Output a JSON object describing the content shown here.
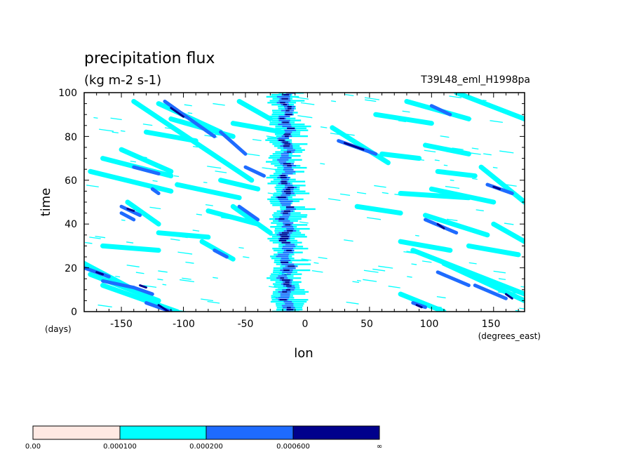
{
  "chart_data": {
    "type": "heatmap",
    "title": "precipitation flux",
    "subtitle": "(kg m-2 s-1)",
    "run_label": "T39L48_eml_H1998pa",
    "xlabel": "lon",
    "x_units": "(degrees_east)",
    "ylabel": "time",
    "y_units": "(days)",
    "xlim": [
      -180,
      175
    ],
    "ylim": [
      0,
      100
    ],
    "x_ticks": [
      -150,
      -100,
      -50,
      0,
      50,
      100,
      150
    ],
    "y_ticks": [
      0,
      20,
      40,
      60,
      80,
      100
    ],
    "x_tick_labels": [
      "-150",
      "-100",
      "-50",
      "0",
      "50",
      "100",
      "150"
    ],
    "y_tick_labels": [
      "0",
      "20",
      "40",
      "60",
      "80",
      "100"
    ],
    "grid": false,
    "legend_position": "bottom",
    "colorbar": {
      "levels": [
        "0.00",
        "0.000100",
        "0.000200",
        "0.000600",
        "∞"
      ],
      "colors": [
        "#ffe9e3",
        "#00ffff",
        "#1e6bff",
        "#00008c"
      ]
    },
    "series": [
      {
        "level": 1,
        "segments": [
          [
            -180,
            22,
            -140,
            10
          ],
          [
            -175,
            17,
            -120,
            5
          ],
          [
            -165,
            12,
            -105,
            0
          ],
          [
            -145,
            50,
            -120,
            40
          ],
          [
            -175,
            64,
            -110,
            55
          ],
          [
            -165,
            70,
            -110,
            62
          ],
          [
            -140,
            96,
            -45,
            60
          ],
          [
            -120,
            95,
            -70,
            82
          ],
          [
            -110,
            88,
            -60,
            80
          ],
          [
            -150,
            74,
            -110,
            64
          ],
          [
            -105,
            58,
            -55,
            52
          ],
          [
            -80,
            46,
            -40,
            40
          ],
          [
            -85,
            32,
            -60,
            24
          ],
          [
            -70,
            60,
            -40,
            56
          ],
          [
            -60,
            48,
            -30,
            36
          ],
          [
            -55,
            96,
            -30,
            88
          ],
          [
            -120,
            36,
            -80,
            34
          ],
          [
            -165,
            30,
            -120,
            28
          ],
          [
            -130,
            82,
            -90,
            78
          ],
          [
            -60,
            86,
            -20,
            82
          ],
          [
            20,
            84,
            65,
            68
          ],
          [
            60,
            72,
            90,
            70
          ],
          [
            40,
            48,
            75,
            45
          ],
          [
            75,
            54,
            130,
            52
          ],
          [
            95,
            44,
            145,
            35
          ],
          [
            75,
            32,
            115,
            28
          ],
          [
            85,
            28,
            175,
            8
          ],
          [
            75,
            8,
            110,
            0
          ],
          [
            110,
            22,
            175,
            5
          ],
          [
            80,
            96,
            130,
            88
          ],
          [
            120,
            100,
            175,
            88
          ],
          [
            140,
            66,
            175,
            50
          ],
          [
            105,
            64,
            135,
            62
          ],
          [
            55,
            90,
            100,
            86
          ],
          [
            95,
            76,
            130,
            72
          ],
          [
            150,
            40,
            175,
            32
          ],
          [
            100,
            56,
            150,
            50
          ],
          [
            130,
            30,
            170,
            26
          ]
        ]
      },
      {
        "level": 2,
        "segments": [
          [
            -180,
            20,
            -160,
            16
          ],
          [
            -165,
            14,
            -140,
            11
          ],
          [
            -140,
            11,
            -125,
            8
          ],
          [
            -150,
            48,
            -135,
            44
          ],
          [
            -140,
            66,
            -120,
            63
          ],
          [
            -115,
            96,
            -75,
            80
          ],
          [
            -70,
            82,
            -50,
            72
          ],
          [
            -50,
            66,
            -35,
            62
          ],
          [
            -55,
            48,
            -40,
            42
          ],
          [
            -75,
            28,
            -65,
            25
          ],
          [
            -130,
            4,
            -110,
            0
          ],
          [
            -125,
            56,
            -120,
            54
          ],
          [
            25,
            78,
            55,
            72
          ],
          [
            95,
            42,
            120,
            36
          ],
          [
            105,
            18,
            130,
            12
          ],
          [
            135,
            12,
            160,
            6
          ],
          [
            85,
            4,
            95,
            2
          ],
          [
            145,
            58,
            165,
            54
          ],
          [
            100,
            94,
            115,
            90
          ],
          [
            -150,
            45,
            -140,
            42
          ]
        ]
      },
      {
        "level": 3,
        "segments": [
          [
            -170,
            18,
            -165,
            17
          ],
          [
            -135,
            12,
            -130,
            11
          ],
          [
            -120,
            3,
            -112,
            0
          ],
          [
            -110,
            93,
            -100,
            89
          ],
          [
            -145,
            47,
            -140,
            46
          ],
          [
            30,
            77,
            45,
            74
          ],
          [
            160,
            8,
            165,
            6
          ],
          [
            88,
            3,
            92,
            2
          ],
          [
            105,
            40,
            110,
            38
          ],
          [
            150,
            57,
            155,
            56
          ]
        ]
      }
    ],
    "column_band": {
      "center_lon": -17,
      "drift_lon": -12,
      "note": "near-stationary precipitation maximum around -15 degrees_east"
    }
  }
}
